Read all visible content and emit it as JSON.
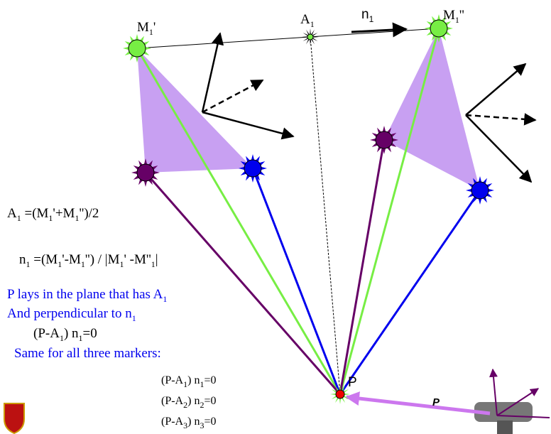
{
  "labels": {
    "m1p": [
      "M",
      "1",
      "'"
    ],
    "a1": [
      "A",
      "1"
    ],
    "n1": [
      "n",
      "1"
    ],
    "m1pp": [
      "M",
      "1",
      "''"
    ],
    "eq_a1": [
      "A",
      "1",
      " =(M",
      "1",
      "'+M",
      "1",
      "'')/2"
    ],
    "eq_n1": [
      "n",
      "1",
      " =(M",
      "1",
      "'-M",
      "1",
      "'') / |M",
      "1",
      "' -M''",
      "1",
      "|"
    ],
    "text_plane": [
      "P lays in the plane that has A",
      "1"
    ],
    "text_perp": [
      "And perpendicular to n",
      "1"
    ],
    "eq_p": [
      "(P-A",
      "1",
      ") n",
      "1",
      "=0"
    ],
    "text_same": [
      "Same for all three markers:"
    ],
    "eq_1": [
      "(P-A",
      "1",
      ") n",
      "1",
      "=0"
    ],
    "eq_2": [
      "(P-A",
      "2",
      ") n",
      "2",
      "=0"
    ],
    "eq_3": [
      "(P-A",
      "3",
      ") n",
      "3",
      "=0"
    ],
    "p": [
      "P"
    ],
    "p_vec": [
      "P"
    ]
  }
}
